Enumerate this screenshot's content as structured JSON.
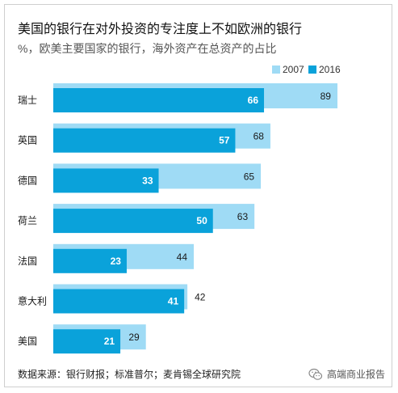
{
  "chart_data": {
    "type": "bar",
    "orientation": "horizontal",
    "title": "美国的银行在对外投资的专注度上不如欧洲的银行",
    "subtitle": "%，欧美主要国家的银行，海外资产在总资产的占比",
    "categories": [
      "瑞士",
      "英国",
      "德国",
      "荷兰",
      "法国",
      "意大利",
      "美国"
    ],
    "series": [
      {
        "name": "2007",
        "values": [
          89,
          68,
          65,
          63,
          44,
          42,
          29
        ],
        "color": "#9fdbf5"
      },
      {
        "name": "2016",
        "values": [
          66,
          57,
          33,
          50,
          23,
          41,
          21
        ],
        "color": "#0aa2da"
      }
    ],
    "xlim": [
      0,
      100
    ],
    "grid": false,
    "legend": "top-right",
    "data_labels": true
  },
  "source": "数据来源：银行财报；标准普尔；麦肯锡全球研究院",
  "watermark": {
    "icon": "wechat-icon",
    "text": "高端商业报告"
  }
}
